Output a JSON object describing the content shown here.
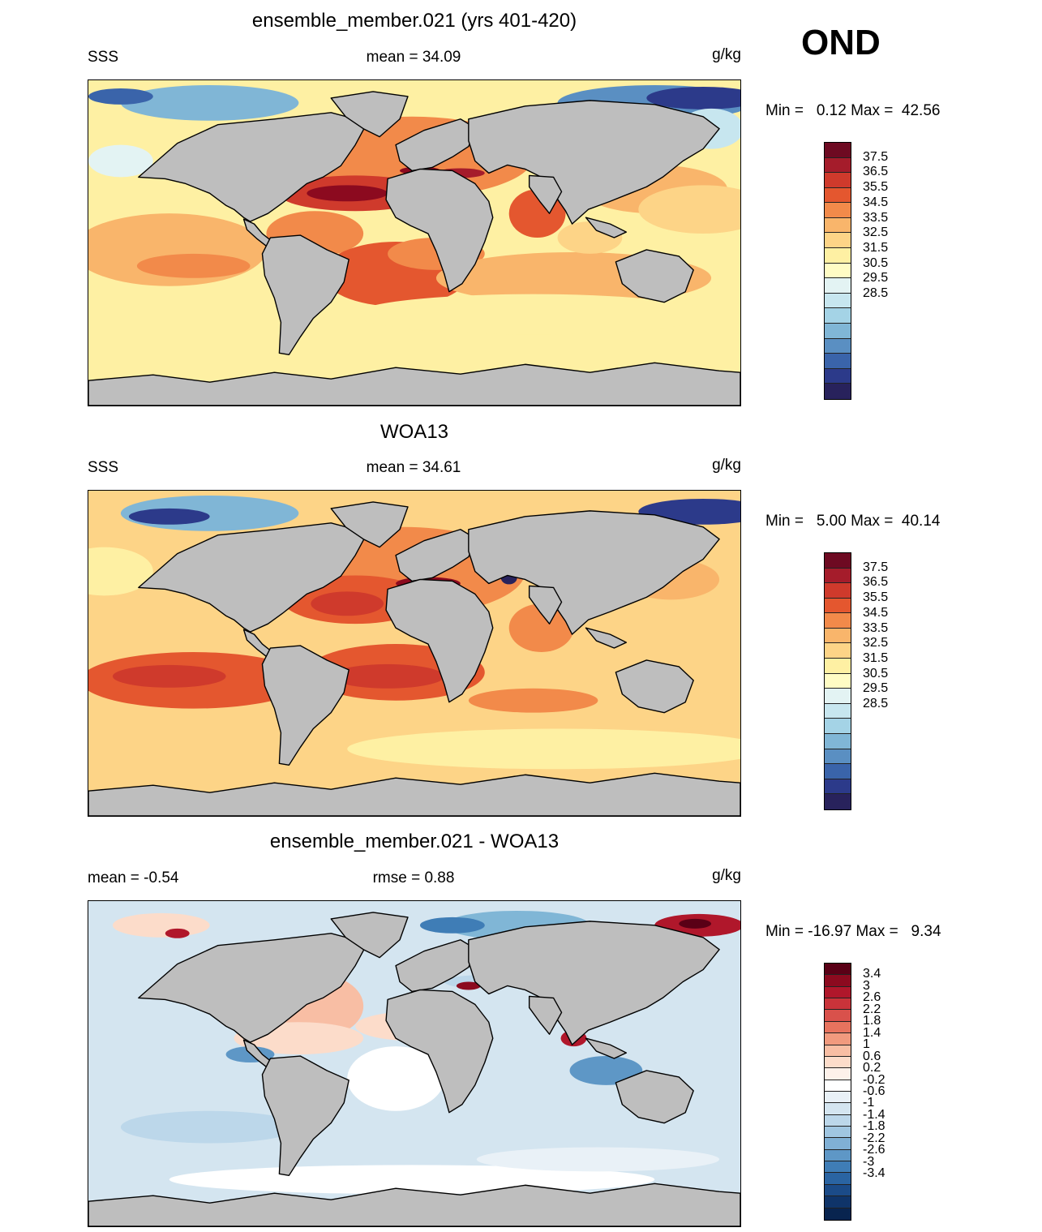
{
  "season": "OND",
  "units": "g/kg",
  "panels": [
    {
      "title": "ensemble_member.021 (yrs 401-420)",
      "left_label": "SSS",
      "center_label": "mean =  34.09",
      "right_label": "g/kg",
      "minmax": "Min =   0.12 Max =  42.56",
      "colorbar_labels": [
        "37.5",
        "36.5",
        "35.5",
        "34.5",
        "33.5",
        "32.5",
        "31.5",
        "30.5",
        "29.5",
        "28.5"
      ],
      "colorbar_colors": [
        "#6e0a22",
        "#a51c2b",
        "#cf3a2c",
        "#e4572f",
        "#f28a4a",
        "#f9b56b",
        "#fdd487",
        "#fef0a3",
        "#fffcc4",
        "#e3f3f3",
        "#c7e6ef",
        "#a4d3e6",
        "#80b6d6",
        "#5a8fc2",
        "#3a64aa",
        "#2c3a8a",
        "#28225c"
      ]
    },
    {
      "title": "WOA13",
      "left_label": "SSS",
      "center_label": "mean =  34.61",
      "right_label": "g/kg",
      "minmax": "Min =   5.00 Max =  40.14",
      "colorbar_labels": [
        "37.5",
        "36.5",
        "35.5",
        "34.5",
        "33.5",
        "32.5",
        "31.5",
        "30.5",
        "29.5",
        "28.5"
      ],
      "colorbar_colors": [
        "#6e0a22",
        "#a51c2b",
        "#cf3a2c",
        "#e4572f",
        "#f28a4a",
        "#f9b56b",
        "#fdd487",
        "#fef0a3",
        "#fffcc4",
        "#e3f3f3",
        "#c7e6ef",
        "#a4d3e6",
        "#80b6d6",
        "#5a8fc2",
        "#3a64aa",
        "#2c3a8a",
        "#28225c"
      ]
    },
    {
      "title": "ensemble_member.021 - WOA13",
      "left_label": "mean =  -0.54",
      "center_label": "rmse =   0.88",
      "right_label": "g/kg",
      "minmax": "Min = -16.97 Max =   9.34",
      "colorbar_labels": [
        "3.4",
        "3",
        "2.6",
        "2.2",
        "1.8",
        "1.4",
        "1",
        "0.6",
        "0.2",
        "-0.2",
        "-0.6",
        "-1",
        "-1.4",
        "-1.8",
        "-2.2",
        "-2.6",
        "-3",
        "-3.4"
      ],
      "colorbar_colors": [
        "#5a0016",
        "#8c0a1f",
        "#b0172b",
        "#c9333a",
        "#d9514b",
        "#e7735e",
        "#f19a7e",
        "#f8bea4",
        "#fcdcca",
        "#fdf1ea",
        "#ffffff",
        "#e9f1f7",
        "#d4e5f0",
        "#bcd7ea",
        "#a0c6e1",
        "#80b0d5",
        "#5e97c6",
        "#3f7db6",
        "#2a64a2",
        "#1b4b88",
        "#0f3469",
        "#08244f"
      ]
    }
  ]
}
